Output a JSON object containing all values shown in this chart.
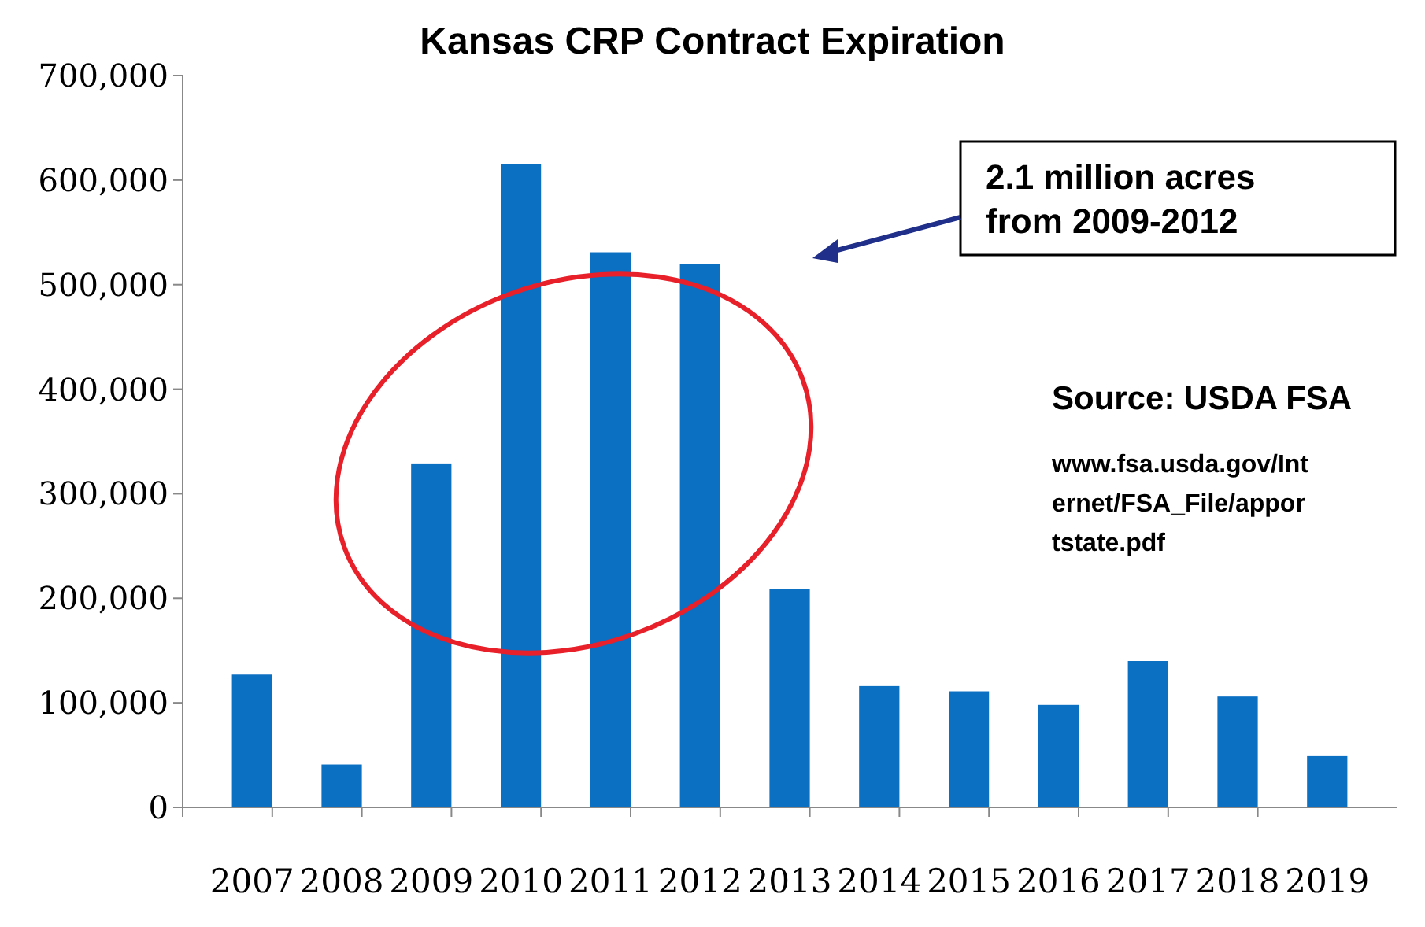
{
  "chart_data": {
    "type": "bar",
    "title": "Kansas CRP Contract Expiration",
    "categories": [
      "2007",
      "2008",
      "2009",
      "2010",
      "2011",
      "2012",
      "2013",
      "2014",
      "2015",
      "2016",
      "2017",
      "2018",
      "2019"
    ],
    "values": [
      127000,
      41000,
      329000,
      615000,
      531000,
      520000,
      209000,
      116000,
      111000,
      98000,
      140000,
      106000,
      49000
    ],
    "color": "#0b6fc2",
    "ylim": [
      0,
      700000
    ],
    "yticks": [
      {
        "value": 0,
        "label": "0"
      },
      {
        "value": 100000,
        "label": "100,000"
      },
      {
        "value": 200000,
        "label": "200,000"
      },
      {
        "value": 300000,
        "label": "300,000"
      },
      {
        "value": 400000,
        "label": "400,000"
      },
      {
        "value": 500000,
        "label": "500,000"
      },
      {
        "value": 600000,
        "label": "600,000"
      },
      {
        "value": 700000,
        "label": "700,000"
      }
    ],
    "grid": false,
    "annotations": [
      "2.1 million acres from 2009-2012",
      "Source: USDA FSA",
      "www.fsa.usda.gov/Internet/FSA_File/apportstate.pdf"
    ]
  }
}
